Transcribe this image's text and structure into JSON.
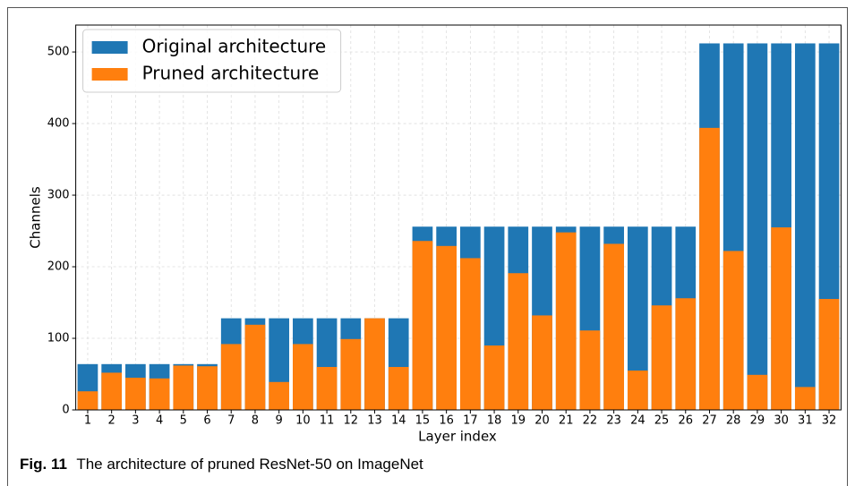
{
  "chart_data": {
    "type": "bar",
    "xlabel": "Layer index",
    "ylabel": "Channels",
    "categories": [
      "1",
      "2",
      "3",
      "4",
      "5",
      "6",
      "7",
      "8",
      "9",
      "10",
      "11",
      "12",
      "13",
      "14",
      "15",
      "16",
      "17",
      "18",
      "19",
      "20",
      "21",
      "22",
      "23",
      "24",
      "25",
      "26",
      "27",
      "28",
      "29",
      "30",
      "31",
      "32"
    ],
    "series": [
      {
        "name": "Original architecture",
        "color": "#1f77b4",
        "values": [
          64,
          64,
          64,
          64,
          64,
          64,
          128,
          128,
          128,
          128,
          128,
          128,
          128,
          128,
          256,
          256,
          256,
          256,
          256,
          256,
          256,
          256,
          256,
          256,
          256,
          256,
          512,
          512,
          512,
          512,
          512,
          512
        ]
      },
      {
        "name": "Pruned architecture",
        "color": "#ff7f0e",
        "values": [
          26,
          52,
          45,
          44,
          62,
          61,
          92,
          119,
          39,
          92,
          60,
          99,
          128,
          60,
          236,
          229,
          212,
          90,
          191,
          132,
          248,
          111,
          232,
          55,
          146,
          156,
          394,
          222,
          49,
          255,
          32,
          155
        ]
      }
    ],
    "ylim": [
      0,
      537.6
    ],
    "yticks": [
      0,
      100,
      200,
      300,
      400,
      500
    ],
    "grid": true,
    "legend": "upper-left"
  },
  "caption": {
    "label": "Fig. 11",
    "text": "The architecture of pruned ResNet-50 on ImageNet"
  }
}
